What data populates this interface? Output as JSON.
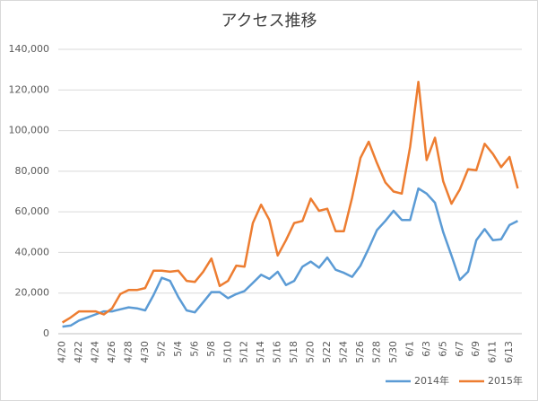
{
  "chart_data": {
    "type": "line",
    "title": "アクセス推移",
    "categories": [
      "4/20",
      null,
      "4/22",
      null,
      "4/24",
      null,
      "4/26",
      null,
      "4/28",
      null,
      "4/30",
      null,
      "5/2",
      null,
      "5/4",
      null,
      "5/6",
      null,
      "5/8",
      null,
      "5/10",
      null,
      "5/12",
      null,
      "5/14",
      null,
      "5/16",
      null,
      "5/18",
      null,
      "5/20",
      null,
      "5/22",
      null,
      "5/24",
      null,
      "5/26",
      null,
      "5/28",
      null,
      "5/30",
      null,
      "6/1",
      null,
      "6/3",
      null,
      "6/5",
      null,
      "6/7",
      null,
      "6/9",
      null,
      "6/11",
      null,
      "6/13",
      null
    ],
    "series": [
      {
        "name": "2014年",
        "color": "#5b9bd5",
        "values": [
          3500,
          4000,
          6500,
          8000,
          9500,
          11000,
          11000,
          12000,
          13000,
          12500,
          11500,
          19000,
          27500,
          26000,
          18000,
          11500,
          10500,
          15500,
          20500,
          20500,
          17500,
          19500,
          21000,
          25000,
          29000,
          27000,
          30500,
          24000,
          26000,
          33000,
          35500,
          32500,
          37500,
          31500,
          30000,
          28000,
          33500,
          42000,
          51000,
          55500,
          60500,
          56000,
          56000,
          71500,
          69000,
          64500,
          50000,
          38500,
          26500,
          30500,
          46000,
          51500,
          46000,
          46500,
          53500,
          55500
        ]
      },
      {
        "name": "2015年",
        "color": "#ed7d31",
        "values": [
          5500,
          8000,
          11000,
          11000,
          11000,
          9500,
          12500,
          19500,
          21500,
          21500,
          22500,
          31000,
          31000,
          30500,
          31000,
          26000,
          25500,
          30500,
          37000,
          23500,
          26000,
          33500,
          33000,
          54500,
          63500,
          56000,
          38500,
          46000,
          54500,
          55500,
          66500,
          60500,
          61500,
          50500,
          50500,
          67000,
          86500,
          94500,
          84000,
          74500,
          70000,
          69000,
          92000,
          124000,
          85500,
          96500,
          75000,
          64000,
          71000,
          81000,
          80500,
          93500,
          88500,
          82000,
          87000,
          71500
        ]
      }
    ],
    "ylim": [
      0,
      140000
    ],
    "yticks": [
      0,
      {
        "value": 20000,
        "label": "20,000"
      },
      {
        "value": 40000,
        "label": "40,000"
      },
      {
        "value": 60000,
        "label": "60,000"
      },
      {
        "value": 80000,
        "label": "80,000"
      },
      {
        "value": 100000,
        "label": "100,000"
      },
      {
        "value": 120000,
        "label": "120,000"
      },
      {
        "value": 140000,
        "label": "140,000"
      }
    ],
    "grid": true,
    "legend": "bottom-right"
  }
}
